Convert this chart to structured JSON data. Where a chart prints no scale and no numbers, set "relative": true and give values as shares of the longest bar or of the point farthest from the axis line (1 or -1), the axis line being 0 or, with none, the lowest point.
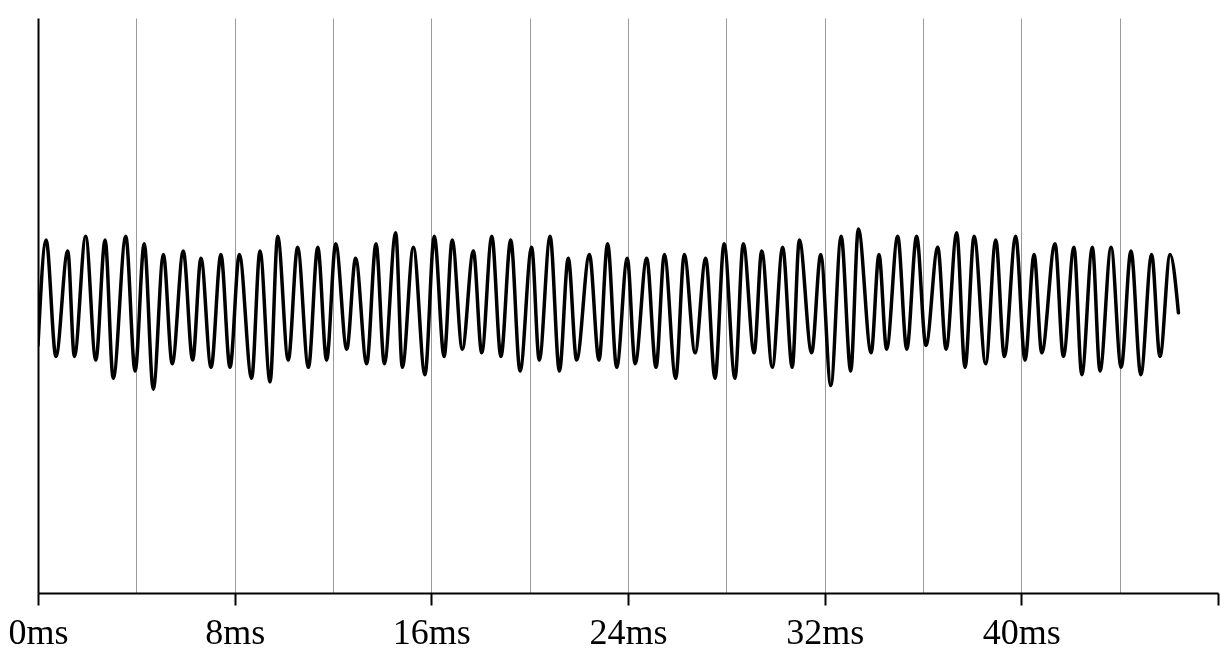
{
  "chart_data": {
    "type": "line",
    "relative": true,
    "grid": "x",
    "xlim": [
      0,
      48
    ],
    "xticks": [
      {
        "value": 0,
        "label": "0ms"
      },
      {
        "value": 4,
        "label": null
      },
      {
        "value": 8,
        "label": "8ms"
      },
      {
        "value": 12,
        "label": null
      },
      {
        "value": 16,
        "label": "16ms"
      },
      {
        "value": 20,
        "label": null
      },
      {
        "value": 24,
        "label": "24ms"
      },
      {
        "value": 28,
        "label": null
      },
      {
        "value": 32,
        "label": "32ms"
      },
      {
        "value": 36,
        "label": null
      },
      {
        "value": 40,
        "label": "40ms"
      },
      {
        "value": 44,
        "label": null
      },
      {
        "value": 48,
        "label": null
      }
    ],
    "x": [
      0,
      0.33,
      0.73,
      1.21,
      1.48,
      1.94,
      2.35,
      2.73,
      3.06,
      3.57,
      3.95,
      4.32,
      4.69,
      5.1,
      5.46,
      5.91,
      6.29,
      6.63,
      7.04,
      7.44,
      7.81,
      8.19,
      8.69,
      9.03,
      9.44,
      9.75,
      10.18,
      10.56,
      11.0,
      11.38,
      11.74,
      12.11,
      12.56,
      12.92,
      13.37,
      13.75,
      14.09,
      14.55,
      14.82,
      15.27,
      15.74,
      16.12,
      16.52,
      16.85,
      17.26,
      17.71,
      18.05,
      18.46,
      18.83,
      19.23,
      19.61,
      20.08,
      20.39,
      20.83,
      21.21,
      21.57,
      21.91,
      22.43,
      22.82,
      23.17,
      23.54,
      23.97,
      24.29,
      24.76,
      25.14,
      25.48,
      25.94,
      26.29,
      26.73,
      27.16,
      27.54,
      27.91,
      28.35,
      28.69,
      29.13,
      29.44,
      29.87,
      30.29,
      30.68,
      30.97,
      31.47,
      31.84,
      32.25,
      32.67,
      33.06,
      33.37,
      33.89,
      34.21,
      34.52,
      34.97,
      35.34,
      35.74,
      36.12,
      36.6,
      36.94,
      37.37,
      37.71,
      38.08,
      38.55,
      38.96,
      39.31,
      39.77,
      40.15,
      40.52,
      40.83,
      41.37,
      41.71,
      42.14,
      42.46,
      42.89,
      43.2,
      43.65,
      44.06,
      44.46,
      44.86,
      45.3,
      45.64,
      46.05,
      46.39
    ],
    "series": [
      {
        "color": "#000000",
        "values": [
          0.68,
          0.97,
          0.65,
          0.94,
          0.65,
          0.98,
          0.64,
          0.97,
          0.59,
          0.98,
          0.61,
          0.96,
          0.56,
          0.93,
          0.63,
          0.94,
          0.64,
          0.92,
          0.62,
          0.93,
          0.62,
          0.93,
          0.59,
          0.94,
          0.58,
          0.98,
          0.64,
          0.95,
          0.62,
          0.95,
          0.64,
          0.96,
          0.67,
          0.92,
          0.63,
          0.96,
          0.63,
          0.99,
          0.62,
          0.95,
          0.6,
          0.98,
          0.65,
          0.97,
          0.67,
          0.94,
          0.66,
          0.98,
          0.65,
          0.97,
          0.61,
          0.95,
          0.64,
          0.98,
          0.61,
          0.92,
          0.64,
          0.93,
          0.64,
          0.96,
          0.62,
          0.92,
          0.63,
          0.92,
          0.62,
          0.93,
          0.59,
          0.93,
          0.66,
          0.92,
          0.59,
          0.96,
          0.59,
          0.96,
          0.66,
          0.94,
          0.62,
          0.95,
          0.62,
          0.97,
          0.66,
          0.93,
          0.57,
          0.98,
          0.61,
          1.0,
          0.66,
          0.93,
          0.67,
          0.98,
          0.67,
          0.98,
          0.68,
          0.95,
          0.67,
          0.99,
          0.62,
          0.98,
          0.63,
          0.97,
          0.65,
          0.98,
          0.64,
          0.93,
          0.66,
          0.96,
          0.65,
          0.95,
          0.6,
          0.95,
          0.61,
          0.95,
          0.62,
          0.94,
          0.6,
          0.93,
          0.65,
          0.93,
          0.77
        ]
      }
    ]
  }
}
